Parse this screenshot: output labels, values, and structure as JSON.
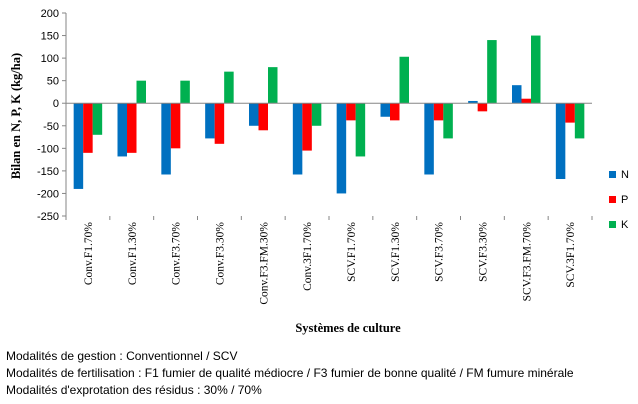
{
  "chart_data": {
    "type": "bar",
    "ylabel": "Bilan en N, P, K (kg/ha)",
    "xlabel": "Systèmes de culture",
    "ylim": [
      -250,
      200
    ],
    "yticks": [
      -250,
      -200,
      -150,
      -100,
      -50,
      0,
      50,
      100,
      150,
      200
    ],
    "categories": [
      "Conv.F1.70%",
      "Conv.F1.30%",
      "Conv.F3.70%",
      "Conv.F3.30%",
      "Conv.F3.FM.30%",
      "Conv.3F1.70%",
      "SCV.F1.70%",
      "SCV.F1.30%",
      "SCV.F3.70%",
      "SCV.F3.30%",
      "SCV.F3.FM.70%",
      "SCV.3F1.70%"
    ],
    "series": [
      {
        "name": "N",
        "color": "#0070C0",
        "values": [
          -190,
          -118,
          -158,
          -78,
          -50,
          -158,
          -200,
          -30,
          -158,
          5,
          40,
          -168
        ]
      },
      {
        "name": "P",
        "color": "#FF0000",
        "values": [
          -110,
          -110,
          -100,
          -90,
          -60,
          -105,
          -38,
          -38,
          -38,
          -18,
          10,
          -43
        ]
      },
      {
        "name": "K",
        "color": "#00B050",
        "values": [
          -70,
          50,
          50,
          70,
          80,
          -50,
          -118,
          103,
          -78,
          140,
          150,
          -78
        ]
      }
    ],
    "legend_position": "right",
    "grid": false
  },
  "notes": [
    "Modalités de gestion : Conventionnel  / SCV",
    "Modalités de fertilisation : F1 fumier de qualité médiocre / F3 fumier de bonne qualité / FM fumure minérale",
    "Modalités d'exprotation  des résidus : 30% / 70%"
  ]
}
